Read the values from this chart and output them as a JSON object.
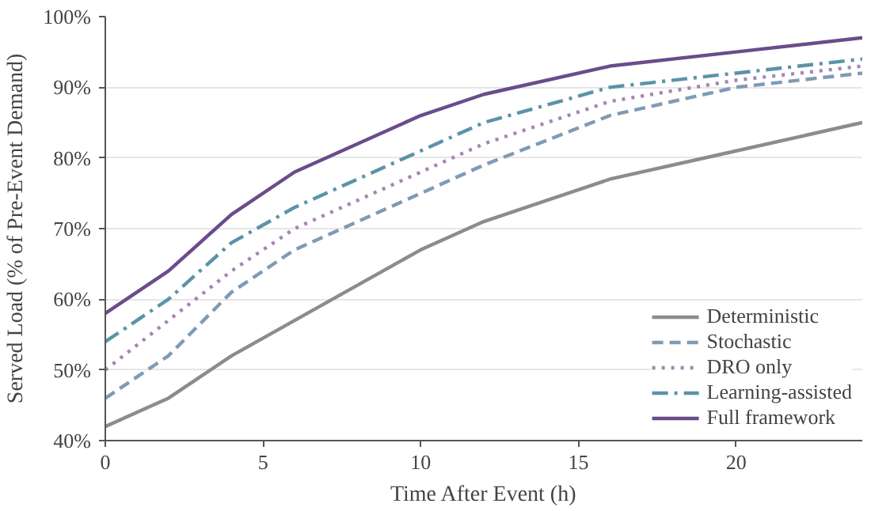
{
  "chart_data": {
    "type": "line",
    "xlabel": "Time After Event (h)",
    "ylabel": "Served Load (% of Pre-Event Demand)",
    "x": [
      0,
      2,
      4,
      6,
      10,
      12,
      16,
      20,
      24
    ],
    "series": [
      {
        "name": "Deterministic",
        "color": "#8c8c8c",
        "line_style": "solid",
        "values": [
          42,
          46,
          52,
          57,
          67,
          71,
          77,
          81,
          85
        ]
      },
      {
        "name": "Stochastic",
        "color": "#7f9bb5",
        "line_style": "dashed",
        "values": [
          46,
          52,
          61,
          67,
          75,
          79,
          86,
          90,
          92
        ]
      },
      {
        "name": "DRO only",
        "color": "#a585b5",
        "line_style": "dotted",
        "values": [
          50,
          57,
          64,
          70,
          78,
          82,
          88,
          91,
          93
        ]
      },
      {
        "name": "Learning-assisted",
        "color": "#5b93a8",
        "line_style": "dashdot",
        "values": [
          54,
          60,
          68,
          73,
          81,
          85,
          90,
          92,
          94
        ]
      },
      {
        "name": "Full framework",
        "color": "#6a4c8c",
        "line_style": "solid",
        "values": [
          58,
          64,
          72,
          78,
          86,
          89,
          93,
          95,
          97
        ]
      }
    ],
    "xlim": [
      0,
      24
    ],
    "xticks": [
      0,
      5,
      10,
      15,
      20
    ],
    "ylim": [
      40,
      100
    ],
    "yticks": [
      {
        "value": 40,
        "label": "40%"
      },
      {
        "value": 50,
        "label": "50%"
      },
      {
        "value": 60,
        "label": "60%"
      },
      {
        "value": 70,
        "label": "70%"
      },
      {
        "value": 80,
        "label": "80%"
      },
      {
        "value": 90,
        "label": "90%"
      },
      {
        "value": 100,
        "label": "100%"
      }
    ],
    "grid": "y",
    "legend": "bottom right",
    "marker": "none"
  }
}
